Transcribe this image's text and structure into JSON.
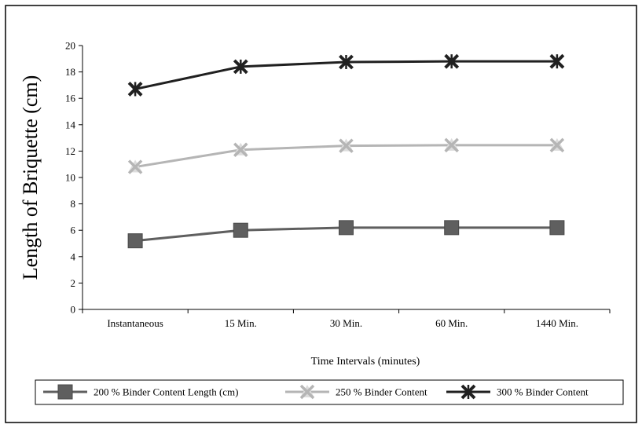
{
  "chart_data": {
    "type": "line",
    "title": "",
    "xlabel": "Time Intervals (minutes)",
    "ylabel": "Length of Briquette (cm)",
    "categories": [
      "Instantaneous",
      "15 Min.",
      "30 Min.",
      "60 Min.",
      "1440 Min."
    ],
    "ylim": [
      0,
      20
    ],
    "yticks": [
      0,
      2,
      4,
      6,
      8,
      10,
      12,
      14,
      16,
      18,
      20
    ],
    "grid": false,
    "legend_position": "bottom",
    "series": [
      {
        "name": "200 % Binder Content Length (cm)",
        "values": [
          5.2,
          6.0,
          6.2,
          6.2,
          6.2
        ],
        "color": "#5f5f5f",
        "marker": "square"
      },
      {
        "name": "250 % Binder Content",
        "values": [
          10.8,
          12.1,
          12.4,
          12.45,
          12.45
        ],
        "color": "#b5b5b5",
        "marker": "triangle-x"
      },
      {
        "name": "300 % Binder Content",
        "values": [
          16.7,
          18.4,
          18.75,
          18.8,
          18.8
        ],
        "color": "#202020",
        "marker": "star-x"
      }
    ]
  }
}
